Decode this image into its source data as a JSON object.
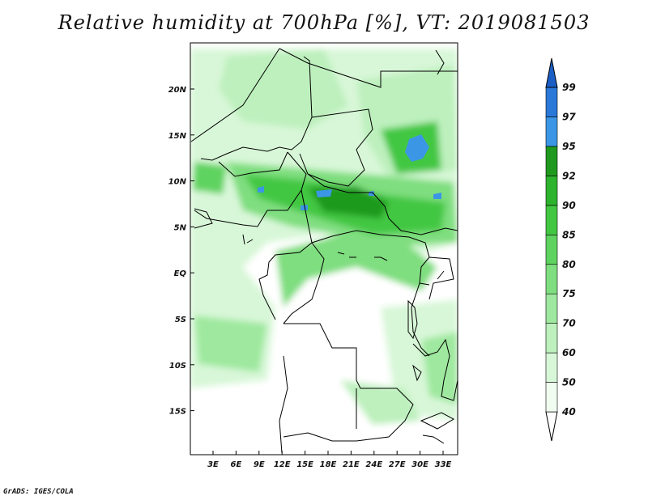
{
  "title": "Relative humidity at 700hPa [%], VT: 2019081503",
  "credit": "GrADS: IGES/COLA",
  "map": {
    "lon_range": [
      0,
      35.5
    ],
    "lat_range": [
      -19,
      24.5
    ],
    "lon_ticks": [
      "3E",
      "6E",
      "9E",
      "12E",
      "15E",
      "18E",
      "21E",
      "24E",
      "27E",
      "30E",
      "33E"
    ],
    "lat_ticks": [
      "20N",
      "15N",
      "10N",
      "5N",
      "EQ",
      "5S",
      "10S",
      "15S"
    ]
  },
  "colorbar": {
    "levels": [
      "40",
      "50",
      "60",
      "70",
      "75",
      "80",
      "85",
      "90",
      "92",
      "95",
      "97",
      "99"
    ],
    "colors": [
      "#f0fcf0",
      "#d8f7d8",
      "#bdf0bd",
      "#9fe89f",
      "#7fde7f",
      "#5fd35f",
      "#42c742",
      "#2db32d",
      "#1f9a1f",
      "#3c96e6",
      "#2a78d8",
      "#1b5fc5"
    ]
  }
}
